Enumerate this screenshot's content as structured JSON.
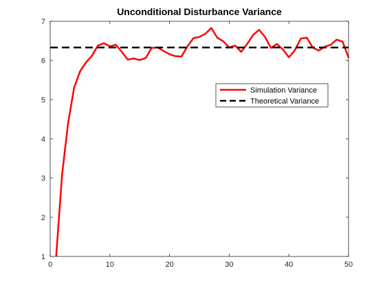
{
  "chart_data": {
    "type": "line",
    "title": "Unconditional  Disturbance  Variance",
    "xlabel": "",
    "ylabel": "",
    "xlim": [
      0,
      50
    ],
    "ylim": [
      1,
      7
    ],
    "x_ticks": [
      "0",
      "10",
      "20",
      "30",
      "40",
      "50"
    ],
    "y_ticks": [
      "1",
      "2",
      "3",
      "4",
      "5",
      "6",
      "7"
    ],
    "grid": false,
    "legend_position": "upper-right-inside",
    "series": [
      {
        "name": "Simulation Variance",
        "color": "#ff0000",
        "style": "solid",
        "x": [
          1,
          2,
          3,
          4,
          5,
          6,
          7,
          8,
          9,
          10,
          11,
          12,
          13,
          14,
          15,
          16,
          17,
          18,
          19,
          20,
          21,
          22,
          23,
          24,
          25,
          26,
          27,
          28,
          29,
          30,
          31,
          32,
          33,
          34,
          35,
          36,
          37,
          38,
          39,
          40,
          41,
          42,
          43,
          44,
          45,
          46,
          47,
          48,
          49,
          50
        ],
        "y": [
          1.0,
          3.1,
          4.4,
          5.3,
          5.72,
          5.95,
          6.12,
          6.38,
          6.44,
          6.36,
          6.4,
          6.22,
          6.02,
          6.05,
          6.01,
          6.06,
          6.32,
          6.33,
          6.24,
          6.16,
          6.11,
          6.1,
          6.36,
          6.57,
          6.6,
          6.68,
          6.83,
          6.58,
          6.49,
          6.33,
          6.38,
          6.22,
          6.42,
          6.65,
          6.78,
          6.6,
          6.32,
          6.42,
          6.28,
          6.08,
          6.26,
          6.56,
          6.58,
          6.33,
          6.25,
          6.35,
          6.4,
          6.53,
          6.48,
          6.07
        ]
      },
      {
        "name": "Theoretical Variance",
        "color": "#000000",
        "style": "dashed",
        "x": [
          0,
          50
        ],
        "y": [
          6.33,
          6.33
        ]
      }
    ]
  }
}
